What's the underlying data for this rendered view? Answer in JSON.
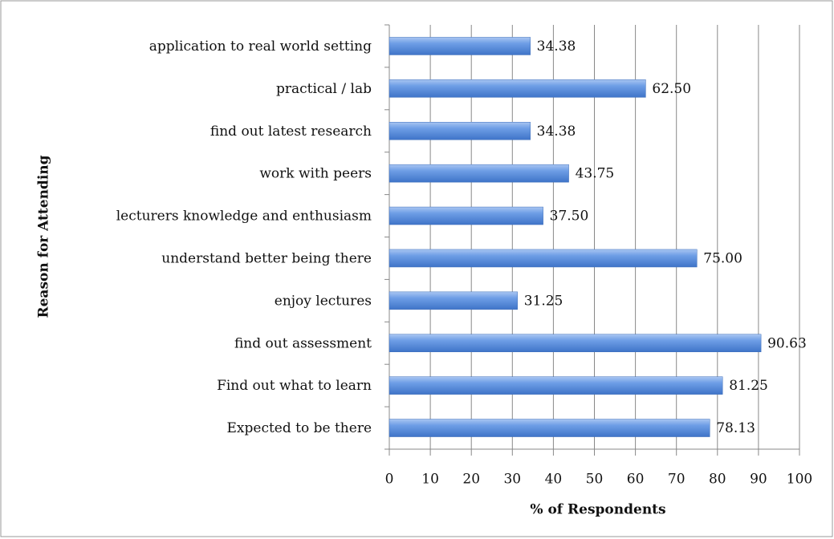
{
  "chart_data": {
    "type": "barh",
    "xlabel": "% of Respondents",
    "ylabel": "Reason for Attending",
    "categories": [
      "application to real world setting",
      "practical / lab",
      "find out latest research",
      "work with peers",
      "lecturers knowledge and enthusiasm",
      "understand better being there",
      "enjoy lectures",
      "find out assessment",
      "Find out what to learn",
      "Expected to be there"
    ],
    "values": [
      34.38,
      62.5,
      34.38,
      43.75,
      37.5,
      75,
      31.25,
      90.63,
      81.25,
      78.13
    ],
    "value_labels": [
      "34.38",
      "62.50",
      "34.38",
      "43.75",
      "37.50",
      "75.00",
      "31.25",
      "90.63",
      "81.25",
      "78.13"
    ],
    "color": "#5b8fdc",
    "xlim": [
      0,
      100
    ],
    "xticks": [
      0,
      10,
      20,
      30,
      40,
      50,
      60,
      70,
      80,
      90,
      100
    ],
    "grid": true
  }
}
